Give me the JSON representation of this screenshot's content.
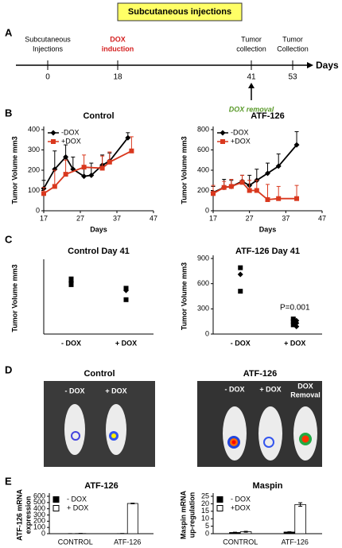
{
  "title": "Subcutaneous injections",
  "panels": [
    "A",
    "B",
    "C",
    "D",
    "E"
  ],
  "timeline": {
    "axis_label": "Days",
    "events": [
      {
        "label": [
          "Subcutaneous",
          "Injections"
        ],
        "day": 0
      },
      {
        "label": [
          "DOX",
          "induction"
        ],
        "day": 18
      },
      {
        "label": [
          "Tumor",
          "collection"
        ],
        "day": 41
      },
      {
        "label": [
          "Tumor",
          "Collection"
        ],
        "day": 53
      }
    ],
    "note": "DOX removal"
  },
  "panel_d": {
    "groups": [
      {
        "title": "Control",
        "conditions": [
          [
            "- DOX"
          ],
          [
            "+ DOX"
          ]
        ]
      },
      {
        "title": "ATF-126",
        "conditions": [
          [
            "- DOX"
          ],
          [
            "+ DOX"
          ],
          [
            "DOX",
            "Removal"
          ]
        ]
      }
    ]
  },
  "chart_data": [
    {
      "type": "line",
      "title": "Control",
      "xlabel": "Days",
      "ylabel": [
        "Tumor Volume mm3"
      ],
      "xlim": [
        17,
        47
      ],
      "xticks": [
        17,
        27,
        37,
        47
      ],
      "ylim": [
        0,
        400
      ],
      "yticks": [
        0,
        100,
        200,
        300,
        400
      ],
      "legend": "upper left",
      "series": [
        {
          "name": "-DOX",
          "color": "#000000",
          "marker": "diamond",
          "x": [
            17,
            20,
            23,
            25,
            28,
            30,
            33,
            35,
            40
          ],
          "values": [
            110,
            205,
            265,
            205,
            170,
            175,
            225,
            245,
            360
          ],
          "errors": [
            40,
            90,
            60,
            60,
            40,
            60,
            50,
            40,
            25
          ]
        },
        {
          "name": "+DOX",
          "color": "#d9381e",
          "marker": "square",
          "x": [
            17,
            20,
            23,
            28,
            33,
            35,
            41
          ],
          "values": [
            85,
            120,
            180,
            215,
            210,
            240,
            295
          ],
          "errors": [
            30,
            80,
            70,
            60,
            60,
            50,
            70
          ]
        }
      ]
    },
    {
      "type": "line",
      "title": "ATF-126",
      "xlabel": "Days",
      "ylabel": [
        "Tumor Volume mm3"
      ],
      "xlim": [
        17,
        47
      ],
      "xticks": [
        17,
        27,
        37,
        47
      ],
      "ylim": [
        0,
        800
      ],
      "yticks": [
        0,
        200,
        400,
        600,
        800
      ],
      "legend": "upper left",
      "series": [
        {
          "name": "-DOX",
          "color": "#000000",
          "marker": "diamond",
          "x": [
            17,
            20,
            22,
            25,
            27,
            29,
            32,
            35,
            40
          ],
          "values": [
            180,
            230,
            240,
            290,
            250,
            300,
            370,
            440,
            650
          ],
          "errors": [
            60,
            80,
            60,
            60,
            100,
            110,
            100,
            120,
            130
          ]
        },
        {
          "name": "+DOX",
          "color": "#d9381e",
          "marker": "square",
          "x": [
            17,
            20,
            22,
            25,
            27,
            29,
            32,
            35,
            40
          ],
          "values": [
            170,
            230,
            240,
            280,
            200,
            200,
            110,
            120,
            120
          ],
          "errors": [
            80,
            60,
            70,
            70,
            100,
            100,
            150,
            120,
            130
          ]
        }
      ]
    },
    {
      "type": "strip",
      "title": "Control Day 41",
      "ylabel": [
        "Tumor Volume mm3"
      ],
      "categories": [
        "- DOX",
        "+ DOX"
      ],
      "ylim": [
        0,
        500
      ],
      "color": "#000000",
      "values": [
        [
          385,
          365,
          345
        ],
        [
          320,
          305,
          240
        ]
      ]
    },
    {
      "type": "strip",
      "title": "ATF-126 Day 41",
      "ylabel": [
        "Tumor Volume mm3"
      ],
      "categories": [
        "- DOX",
        "+ DOX"
      ],
      "ylim": [
        0,
        900
      ],
      "yticks": [
        0,
        300,
        600,
        900
      ],
      "color": "#000000",
      "values": [
        [
          790,
          710,
          510
        ],
        [
          180,
          160,
          150,
          130,
          110,
          90
        ]
      ],
      "annotation": "P=0.001"
    },
    {
      "type": "bar",
      "title": "ATF-126",
      "ylabel": [
        "ATF-126 mRNA",
        "expression"
      ],
      "categories": [
        "CONTROL",
        "ATF-126"
      ],
      "ylim": [
        0,
        600
      ],
      "yticks": [
        0,
        100,
        200,
        300,
        400,
        500,
        600
      ],
      "legend": "upper left",
      "series": [
        {
          "name": "- DOX",
          "color": "#000000",
          "values": [
            1,
            2
          ],
          "errors": [
            0.5,
            0.5
          ]
        },
        {
          "name": "+ DOX",
          "color": "#ffffff",
          "values": [
            3,
            485
          ],
          "errors": [
            1,
            5
          ]
        }
      ]
    },
    {
      "type": "bar",
      "title": "Maspin",
      "ylabel": [
        "Maspin mRNA",
        "up-regulation"
      ],
      "categories": [
        "CONTROL",
        "ATF-126"
      ],
      "ylim": [
        0,
        25
      ],
      "yticks": [
        0,
        5,
        10,
        15,
        20,
        25
      ],
      "legend": "upper left",
      "series": [
        {
          "name": "- DOX",
          "color": "#000000",
          "values": [
            0.8,
            1.1
          ],
          "errors": [
            0.2,
            0.2
          ]
        },
        {
          "name": "+DOX",
          "color": "#ffffff",
          "values": [
            1.3,
            19.5
          ],
          "errors": [
            0.3,
            1.2
          ]
        }
      ]
    }
  ]
}
